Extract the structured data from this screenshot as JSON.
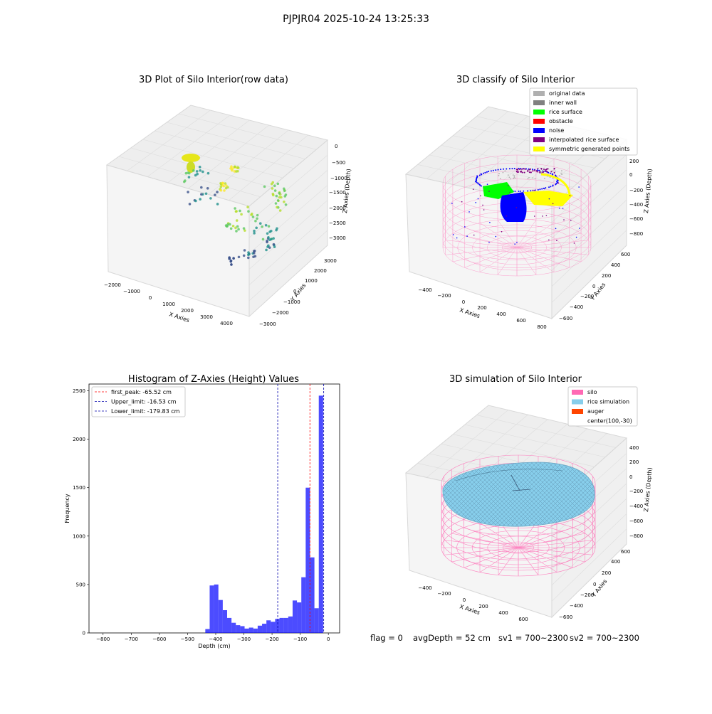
{
  "suptitle": "PJPJR04 2025-10-24 13:25:33",
  "status_line": {
    "flag": "flag = 0",
    "avg_depth": "avgDepth = 52 cm",
    "sv1": "sv1 = 700~2300",
    "sv2": "sv2 = 700~2300"
  },
  "colors": {
    "hist_bar": "#0000ff",
    "first_peak": "#ff0000",
    "limit_line": "#0000aa",
    "silo": "#ff69b4",
    "rice_sim": "#87ceeb",
    "auger": "#ff4500",
    "original": "#b0b0b0",
    "inner_wall": "#808080",
    "rice_surface": "#00ff00",
    "obstacle": "#ff0000",
    "noise": "#0000ff",
    "interp": "#800080",
    "symmetric": "#ffff00"
  },
  "panels": {
    "raw": {
      "title": "3D Plot of Silo Interior(row data)",
      "xlabel": "X Axies",
      "ylabel": "Y Axies",
      "zlabel": "Z Axies (Depth)",
      "xticks": [
        "−2000",
        "−1000",
        "0",
        "1000",
        "2000",
        "3000",
        "4000"
      ],
      "yticks": [
        "−3000",
        "−2000",
        "−1000",
        "0",
        "1000",
        "2000",
        "3000"
      ],
      "zticks": [
        "0",
        "−500",
        "−1000",
        "−1500",
        "−2000",
        "−2500",
        "−3000"
      ]
    },
    "classify": {
      "title": "3D classify of Silo Interior",
      "xlabel": "X Axies",
      "ylabel": "Y Axies",
      "zlabel": "Z Axies (Depth)",
      "xticks": [
        "−400",
        "−200",
        "0",
        "200",
        "400",
        "600",
        "800"
      ],
      "yticks": [
        "−600",
        "−400",
        "−200",
        "0",
        "200",
        "400",
        "600"
      ],
      "zticks": [
        "400",
        "200",
        "0",
        "−200",
        "−400",
        "−600",
        "−800"
      ],
      "legend": [
        {
          "label": "original data",
          "color": "#b0b0b0"
        },
        {
          "label": "inner wall",
          "color": "#808080"
        },
        {
          "label": "rice surface",
          "color": "#00ff00"
        },
        {
          "label": "obstacle",
          "color": "#ff0000"
        },
        {
          "label": "noise",
          "color": "#0000ff"
        },
        {
          "label": "interpolated rice surface",
          "color": "#800080"
        },
        {
          "label": "symmetric generated points",
          "color": "#ffff00"
        }
      ]
    },
    "simulation": {
      "title": "3D simulation of Silo Interior",
      "xlabel": "X Axies",
      "ylabel": "Y Axies",
      "zlabel": "Z Axies (Depth)",
      "xticks": [
        "−400",
        "−200",
        "0",
        "200",
        "400",
        "600"
      ],
      "yticks": [
        "−600",
        "−400",
        "−200",
        "0",
        "200",
        "400",
        "600"
      ],
      "zticks": [
        "400",
        "200",
        "0",
        "−200",
        "−400",
        "−600",
        "−800"
      ],
      "legend": [
        {
          "label": "silo",
          "color": "#ff69b4"
        },
        {
          "label": "rice simulation",
          "color": "#87ceeb"
        },
        {
          "label": "auger",
          "color": "#ff4500"
        },
        {
          "label": "center(100,-30)",
          "color": ""
        }
      ]
    }
  },
  "chart_data": {
    "type": "bar",
    "title": "Histogram of Z-Axies (Height) Values",
    "xlabel": "Depth (cm)",
    "ylabel": "Frequency",
    "xlim": [
      -850,
      40
    ],
    "ylim": [
      0,
      2570
    ],
    "xticks": [
      -800,
      -700,
      -600,
      -500,
      -400,
      -300,
      -200,
      -100,
      0
    ],
    "yticks": [
      0,
      500,
      1000,
      1500,
      2000,
      2500
    ],
    "tick_labels_x": [
      "−800",
      "−700",
      "−600",
      "−500",
      "−400",
      "−300",
      "−200",
      "−100",
      "0"
    ],
    "tick_labels_y": [
      "0",
      "500",
      "1000",
      "1500",
      "2000",
      "2500"
    ],
    "bin_width": 15.5,
    "bins_start": [
      -437,
      -421.5,
      -406,
      -390.5,
      -375,
      -359.5,
      -344,
      -328.5,
      -313,
      -297.5,
      -282,
      -266.5,
      -251,
      -235.5,
      -220,
      -204.5,
      -189,
      -173.5,
      -158,
      -142.5,
      -127,
      -111.5,
      -96,
      -80.5,
      -65,
      -49.5,
      -34,
      -18.5
    ],
    "values": [
      40,
      490,
      500,
      340,
      235,
      155,
      105,
      80,
      70,
      45,
      55,
      45,
      75,
      95,
      130,
      115,
      145,
      155,
      155,
      170,
      335,
      315,
      575,
      1500,
      780,
      255,
      2450,
      0
    ],
    "lines": [
      {
        "name": "first_peak: -65.52 cm",
        "x": -65.52,
        "color": "#ff0000"
      },
      {
        "name": "Upper_limit: -16.53 cm",
        "x": -16.53,
        "color": "#0000aa"
      },
      {
        "name": "Lower_limit: -179.83 cm",
        "x": -179.83,
        "color": "#0000aa"
      }
    ],
    "legend_position": "upper-left"
  }
}
